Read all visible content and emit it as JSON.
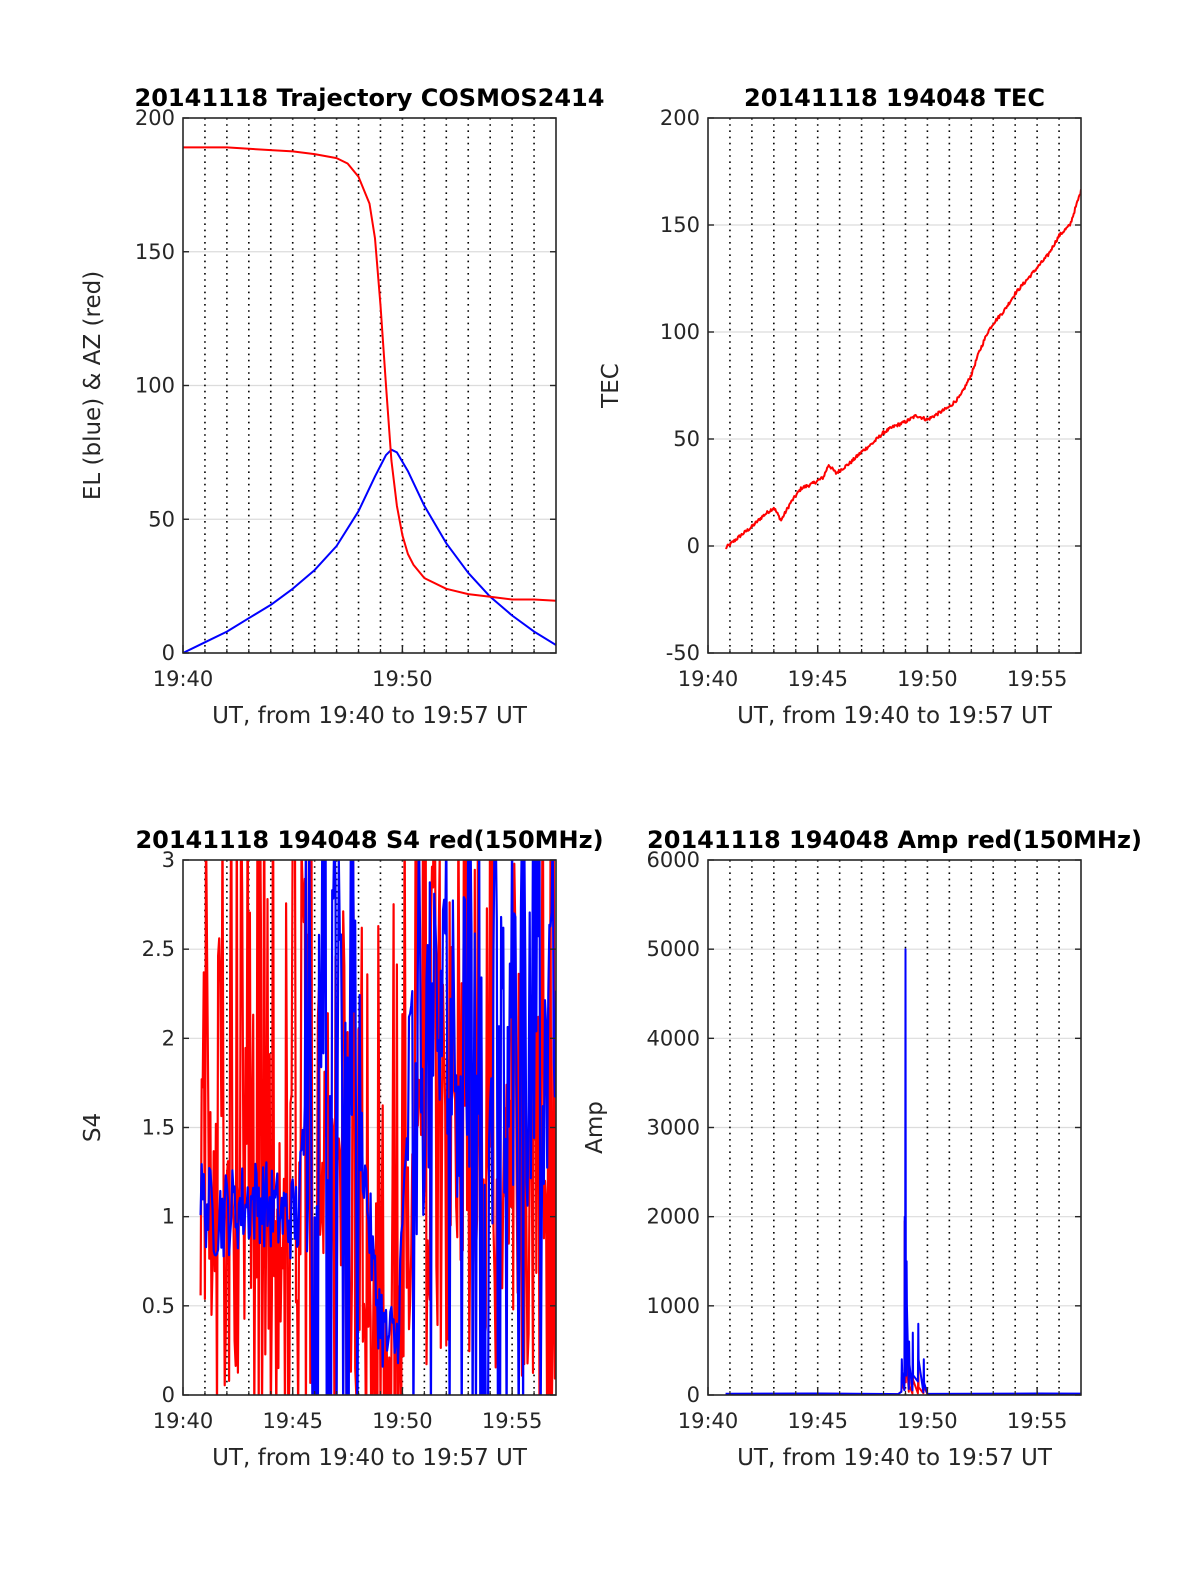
{
  "chart_data": [
    {
      "type": "line",
      "title": "20141118 Trajectory COSMOS2414",
      "xlabel": "UT, from 19:40 to 19:57 UT",
      "ylabel": "EL (blue) & AZ (red)",
      "xlim": [
        "19:40",
        "19:57"
      ],
      "ylim": [
        0,
        200
      ],
      "xticks": [
        "19:40",
        "19:50"
      ],
      "yticks": [
        0,
        50,
        100,
        150,
        200
      ],
      "grid": "on",
      "series": [
        {
          "color": "#0000ff",
          "x": [
            "19:40:00",
            "19:41:00",
            "19:42:00",
            "19:43:00",
            "19:44:00",
            "19:45:00",
            "19:46:00",
            "19:47:00",
            "19:48:00",
            "19:48:45",
            "19:49:15",
            "19:49:30",
            "19:49:45",
            "19:50:15",
            "19:51:00",
            "19:52:00",
            "19:53:00",
            "19:54:00",
            "19:55:00",
            "19:56:00",
            "19:57:00"
          ],
          "values": [
            0,
            4,
            8,
            13,
            18,
            24,
            31,
            40,
            53,
            66,
            74,
            76,
            75,
            68,
            55,
            41,
            30,
            21,
            14,
            8,
            3
          ]
        },
        {
          "color": "#ff0000",
          "x": [
            "19:40:00",
            "19:41:00",
            "19:42:00",
            "19:43:00",
            "19:44:00",
            "19:45:00",
            "19:46:00",
            "19:47:00",
            "19:47:30",
            "19:48:00",
            "19:48:30",
            "19:48:45",
            "19:49:00",
            "19:49:15",
            "19:49:30",
            "19:49:45",
            "19:50:00",
            "19:50:15",
            "19:50:30",
            "19:51:00",
            "19:52:00",
            "19:53:00",
            "19:54:00",
            "19:55:00",
            "19:56:00",
            "19:57:00"
          ],
          "values": [
            189,
            189,
            189,
            188.5,
            188,
            187.5,
            186.5,
            185,
            183,
            178,
            168,
            155,
            130,
            100,
            72,
            55,
            44,
            37,
            33,
            28,
            24,
            22,
            21,
            20,
            20,
            19.5
          ]
        }
      ]
    },
    {
      "type": "line",
      "title": "20141118 194048 TEC",
      "xlabel": "UT, from 19:40 to 19:57 UT",
      "ylabel": "TEC",
      "xlim": [
        "19:40",
        "19:57"
      ],
      "ylim": [
        -50,
        200
      ],
      "xticks": [
        "19:40",
        "19:45",
        "19:50",
        "19:55"
      ],
      "yticks": [
        -50,
        0,
        50,
        100,
        150,
        200
      ],
      "grid": "on",
      "series": [
        {
          "color": "#ff0000",
          "x": [
            "19:40:48",
            "19:41:30",
            "19:42:00",
            "19:42:30",
            "19:43:00",
            "19:43:20",
            "19:43:45",
            "19:44:15",
            "19:44:45",
            "19:45:15",
            "19:45:30",
            "19:45:50",
            "19:46:30",
            "19:47:00",
            "19:47:30",
            "19:48:00",
            "19:48:30",
            "19:49:00",
            "19:49:30",
            "19:50:00",
            "19:50:30",
            "19:51:00",
            "19:51:30",
            "19:52:00",
            "19:52:20",
            "19:52:45",
            "19:53:00",
            "19:53:30",
            "19:54:00",
            "19:54:30",
            "19:55:00",
            "19:55:30",
            "19:56:00",
            "19:56:30",
            "19:57:00"
          ],
          "values": [
            -1,
            5,
            9,
            14,
            18,
            12,
            20,
            27,
            29,
            32,
            38,
            34,
            39,
            44,
            48,
            53,
            56,
            58,
            61,
            59,
            62,
            65,
            70,
            80,
            90,
            100,
            104,
            110,
            118,
            124,
            130,
            136,
            145,
            150,
            166
          ]
        }
      ]
    },
    {
      "type": "line",
      "title": "20141118 194048 S4 red(150MHz)",
      "xlabel": "UT, from 19:40 to 19:57 UT",
      "ylabel": "S4",
      "xlim": [
        "19:40",
        "19:57"
      ],
      "ylim": [
        0,
        3
      ],
      "xticks": [
        "19:40",
        "19:45",
        "19:50",
        "19:55"
      ],
      "yticks": [
        0,
        0.5,
        1,
        1.5,
        2,
        2.5,
        3
      ],
      "grid": "on",
      "series": [
        {
          "color": "#ff0000",
          "x": [
            "19:40:48",
            "19:41:30",
            "19:42:30",
            "19:43:30",
            "19:44:30",
            "19:45:30",
            "19:46:30",
            "19:47:30",
            "19:48:30",
            "19:49:00",
            "19:49:30",
            "19:50:00",
            "19:50:30",
            "19:51:30",
            "19:52:30",
            "19:53:30",
            "19:54:30",
            "19:55:30",
            "19:56:30",
            "19:57:00"
          ],
          "values": [
            1.5,
            1.5,
            1.5,
            1.5,
            1.5,
            1.5,
            1.5,
            1.5,
            1.1,
            0.4,
            0.6,
            1.2,
            1.8,
            2.0,
            2.0,
            1.8,
            1.8,
            1.8,
            1.6,
            0.7
          ]
        },
        {
          "color": "#0000ff",
          "x": [
            "19:40:48",
            "19:41:30",
            "19:42:30",
            "19:43:30",
            "19:44:30",
            "19:45:15",
            "19:45:45",
            "19:46:30",
            "19:47:30",
            "19:48:15",
            "19:48:45",
            "19:49:15",
            "19:49:45",
            "19:50:00",
            "19:50:15",
            "19:50:45",
            "19:51:30",
            "19:52:30",
            "19:53:30",
            "19:54:30",
            "19:55:30",
            "19:56:30",
            "19:57:00"
          ],
          "values": [
            1.1,
            1.0,
            1.05,
            1.1,
            1.0,
            1.0,
            1.8,
            2.0,
            2.2,
            1.3,
            0.6,
            0.3,
            0.3,
            0.9,
            1.6,
            1.8,
            2.1,
            2.0,
            1.9,
            1.8,
            1.9,
            1.8,
            1.9
          ]
        }
      ]
    },
    {
      "type": "line",
      "title": "20141118 194048 Amp red(150MHz)",
      "xlabel": "UT, from 19:40 to 19:57 UT",
      "ylabel": "Amp",
      "xlim": [
        "19:40",
        "19:57"
      ],
      "ylim": [
        0,
        6000
      ],
      "xticks": [
        "19:40",
        "19:45",
        "19:50",
        "19:55"
      ],
      "yticks": [
        0,
        1000,
        2000,
        3000,
        4000,
        5000,
        6000
      ],
      "grid": "on",
      "series": [
        {
          "color": "#ff0000",
          "x": [
            "19:40:48",
            "19:45:00",
            "19:48:40",
            "19:48:50",
            "19:48:58",
            "19:49:02",
            "19:49:10",
            "19:49:20",
            "19:49:35",
            "19:49:50",
            "19:50:00",
            "19:55:00",
            "19:57:00"
          ],
          "values": [
            10,
            10,
            10,
            200,
            1950,
            1000,
            200,
            250,
            280,
            150,
            10,
            10,
            10
          ]
        },
        {
          "color": "#0000ff",
          "x": [
            "19:40:48",
            "19:45:00",
            "19:48:40",
            "19:48:50",
            "19:48:58",
            "19:49:00",
            "19:49:03",
            "19:49:10",
            "19:49:20",
            "19:49:35",
            "19:49:50",
            "19:50:00",
            "19:55:00",
            "19:57:00"
          ],
          "values": [
            15,
            15,
            15,
            400,
            2000,
            5000,
            1500,
            600,
            700,
            800,
            400,
            15,
            15,
            15
          ]
        }
      ]
    }
  ]
}
